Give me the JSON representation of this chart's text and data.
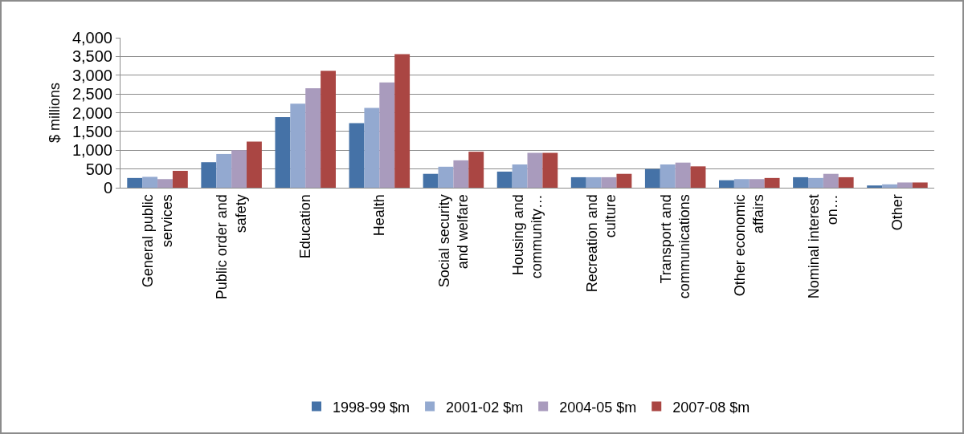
{
  "chart_data": {
    "type": "bar",
    "ylabel": "$ millions",
    "categories": [
      "General public services",
      "Public order and safety",
      "Education",
      "Health",
      "Social security and welfare",
      "Housing and community…",
      "Recreation and culture",
      "Transport and communications",
      "Other economic affairs",
      "Nominal interest on…",
      "Other"
    ],
    "series": [
      {
        "name": "1998-99 $m",
        "color": "#4572a7",
        "values": [
          260,
          680,
          1880,
          1720,
          370,
          430,
          280,
          500,
          200,
          280,
          60
        ]
      },
      {
        "name": "2001-02 $m",
        "color": "#93a9d0",
        "values": [
          290,
          900,
          2240,
          2130,
          560,
          620,
          280,
          620,
          230,
          260,
          90
        ]
      },
      {
        "name": "2004-05 $m",
        "color": "#a99bbd",
        "values": [
          230,
          1000,
          2650,
          2810,
          730,
          930,
          280,
          670,
          230,
          370,
          140
        ]
      },
      {
        "name": "2007-08 $m",
        "color": "#aa4643",
        "values": [
          450,
          1230,
          3120,
          3560,
          960,
          930,
          370,
          570,
          260,
          280,
          140
        ]
      }
    ],
    "ylim": [
      0,
      4000
    ],
    "yticks": [
      {
        "value": 0,
        "label": "0"
      },
      {
        "value": 500,
        "label": "500"
      },
      {
        "value": 1000,
        "label": "1,000"
      },
      {
        "value": 1500,
        "label": "1,500"
      },
      {
        "value": 2000,
        "label": "2,000"
      },
      {
        "value": 2500,
        "label": "2,500"
      },
      {
        "value": 3000,
        "label": "3,000"
      },
      {
        "value": 3500,
        "label": "3,500"
      },
      {
        "value": 4000,
        "label": "4,000"
      }
    ],
    "grid": "y",
    "legend": "bottom"
  }
}
